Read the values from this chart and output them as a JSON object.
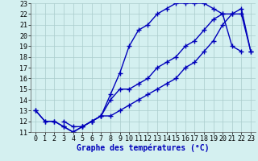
{
  "xlabel": "Graphe des températures (°C)",
  "background_color": "#d4f0f0",
  "line_color": "#0000bb",
  "xlim": [
    -0.5,
    23.5
  ],
  "ylim": [
    11,
    23
  ],
  "xticks": [
    0,
    1,
    2,
    3,
    4,
    5,
    6,
    7,
    8,
    9,
    10,
    11,
    12,
    13,
    14,
    15,
    16,
    17,
    18,
    19,
    20,
    21,
    22,
    23
  ],
  "yticks": [
    11,
    12,
    13,
    14,
    15,
    16,
    17,
    18,
    19,
    20,
    21,
    22,
    23
  ],
  "line1_x": [
    0,
    1,
    2,
    3,
    4,
    5,
    6,
    7,
    8,
    9,
    10,
    11,
    12,
    13,
    14,
    15,
    16,
    17,
    18,
    19,
    20,
    21,
    22
  ],
  "line1_y": [
    13,
    12,
    12,
    11.5,
    11,
    11.5,
    12,
    12.5,
    14.5,
    16.5,
    19,
    20.5,
    21,
    22,
    22.5,
    23,
    23,
    23,
    23,
    22.5,
    22,
    19,
    18.5
  ],
  "line2_x": [
    0,
    1,
    2,
    3,
    4,
    5,
    6,
    7,
    8,
    9,
    10,
    11,
    12,
    13,
    14,
    15,
    16,
    17,
    18,
    19,
    20,
    21,
    22,
    23
  ],
  "line2_y": [
    13,
    12,
    12,
    11.5,
    11,
    11.5,
    12,
    12.5,
    14,
    15,
    15,
    15.5,
    16,
    17,
    17.5,
    18,
    19,
    19.5,
    20.5,
    21.5,
    22,
    22,
    22,
    18.5
  ],
  "line3_x": [
    3,
    4,
    5,
    6,
    7,
    8,
    9,
    10,
    11,
    12,
    13,
    14,
    15,
    16,
    17,
    18,
    19,
    20,
    21,
    22,
    23
  ],
  "line3_y": [
    12,
    11.5,
    11.5,
    12,
    12.5,
    12.5,
    13,
    13.5,
    14,
    14.5,
    15,
    15.5,
    16,
    17,
    17.5,
    18.5,
    19.5,
    21,
    22,
    22.5,
    18.5
  ],
  "marker": "+",
  "markersize": 4,
  "markeredgewidth": 1.0,
  "linewidth": 1.0,
  "tick_fontsize": 6,
  "xlabel_fontsize": 7,
  "grid_color": "#aacccc",
  "grid_linewidth": 0.5,
  "xlabel_color": "#0000bb"
}
